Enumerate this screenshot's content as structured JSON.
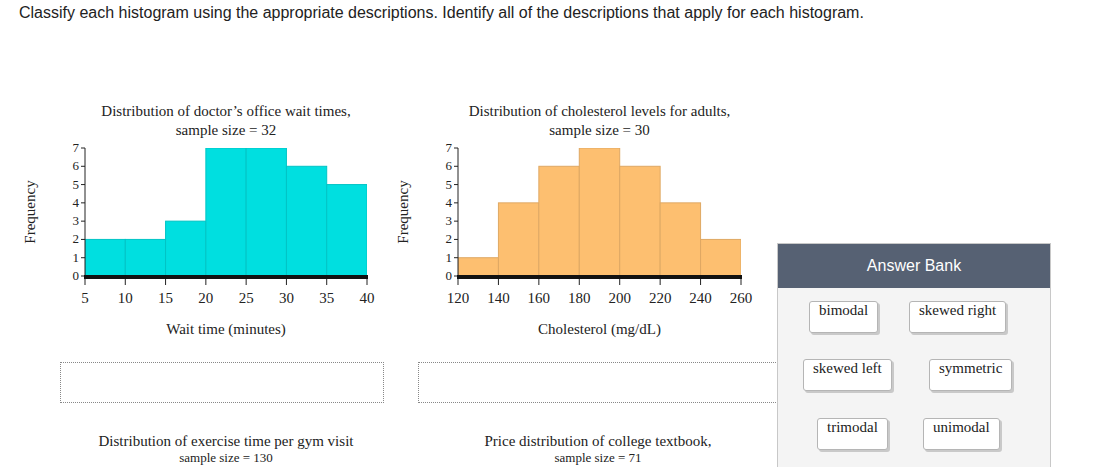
{
  "instruction": "Classify each histogram using the appropriate descriptions. Identify all of the descriptions that apply for each histogram.",
  "chart_data": [
    {
      "type": "histogram",
      "title": "Distribution of doctor’s office wait times,",
      "subtitle": "sample size = 32",
      "x_label": "Wait time (minutes)",
      "y_label": "Frequency",
      "bins": [
        5,
        10,
        15,
        20,
        25,
        30,
        35,
        40
      ],
      "values": [
        2,
        2,
        3,
        7,
        7,
        6,
        5
      ],
      "color": "#00dfe0",
      "xlim": [
        5,
        40
      ],
      "xticks": [
        5,
        10,
        15,
        20,
        25,
        30,
        35,
        40
      ],
      "ylim": [
        0,
        7
      ],
      "yticks": [
        0,
        1,
        2,
        3,
        4,
        5,
        6,
        7
      ]
    },
    {
      "type": "histogram",
      "title": "Distribution of cholesterol levels for adults,",
      "subtitle": "sample size = 30",
      "x_label": "Cholesterol (mg/dL)",
      "y_label": "Frequency",
      "bins": [
        120,
        140,
        160,
        180,
        200,
        220,
        240,
        260
      ],
      "values": [
        1,
        4,
        6,
        7,
        6,
        4,
        2
      ],
      "color": "#fdbf70",
      "xlim": [
        120,
        260
      ],
      "xticks": [
        120,
        140,
        160,
        180,
        200,
        220,
        240,
        260
      ],
      "ylim": [
        0,
        7
      ],
      "yticks": [
        0,
        1,
        2,
        3,
        4,
        5,
        6,
        7
      ]
    }
  ],
  "partial_charts": [
    {
      "title": "Distribution of exercise time per gym visit",
      "subtitle": "sample size = 130"
    },
    {
      "title": "Price distribution of college textbook,",
      "subtitle": "sample size = 71"
    }
  ],
  "answer_bank": {
    "title": "Answer Bank",
    "options": [
      "bimodal",
      "skewed right",
      "skewed left",
      "symmetric",
      "trimodal",
      "unimodal"
    ]
  }
}
